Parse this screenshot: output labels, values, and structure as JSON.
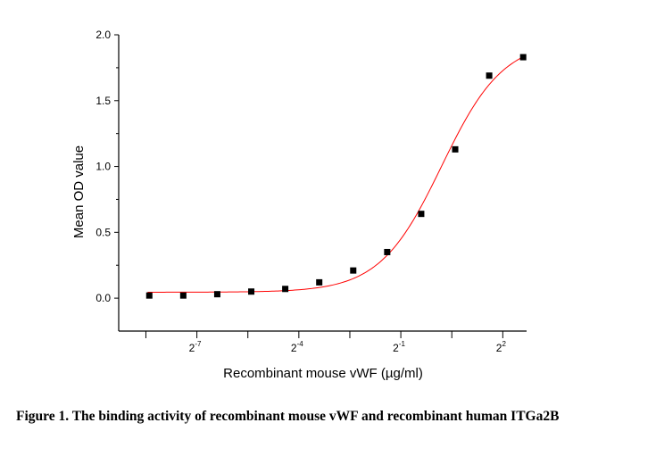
{
  "caption": "Figure 1. The binding activity of recombinant mouse vWF and recombinant human ITGa2B",
  "chart_data": {
    "type": "scatter",
    "xlabel": "Recombinant mouse vWF (µg/ml)",
    "ylabel": "Mean OD value",
    "xscale": "log2",
    "xlim_log2": [
      -9.3,
      2.7
    ],
    "ylim": [
      -0.25,
      2.0
    ],
    "y_ticks": [
      0.0,
      0.5,
      1.0,
      1.5,
      2.0
    ],
    "y_tick_labels": [
      "0.0",
      "0.5",
      "1.0",
      "1.5",
      "2.0"
    ],
    "x_major_ticks_log2": [
      -7,
      -4,
      -1,
      2
    ],
    "x_tick_labels": [
      {
        "base": "2",
        "exp": "-7"
      },
      {
        "base": "2",
        "exp": "-4"
      },
      {
        "base": "2",
        "exp": "-1"
      },
      {
        "base": "2",
        "exp": "2"
      }
    ],
    "x_minor_ticks_log2": [
      -8.5,
      -5.5,
      -2.5,
      0.5
    ],
    "series": [
      {
        "marker": "square",
        "color": "#000000",
        "x_log2": [
          -8.4,
          -7.4,
          -6.4,
          -5.4,
          -4.4,
          -3.4,
          -2.4,
          -1.4,
          -0.4,
          0.6,
          1.6,
          2.6
        ],
        "y": [
          0.02,
          0.02,
          0.03,
          0.05,
          0.07,
          0.12,
          0.21,
          0.35,
          0.64,
          1.13,
          1.69,
          1.83
        ]
      }
    ],
    "fit": {
      "type": "logistic",
      "color": "#ff0000",
      "bottom": 0.045,
      "top": 1.96,
      "x50_log2": 0.2,
      "slope_log2": 1.1
    },
    "grid": false,
    "legend": "none"
  }
}
